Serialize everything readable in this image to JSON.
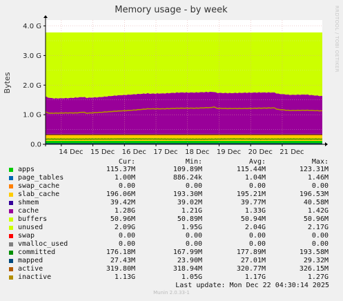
{
  "chart_data": {
    "type": "area",
    "stacked": true,
    "title": "Memory usage - by week",
    "ylabel": "Bytes",
    "side_label": "RRDTOOL / TOBI OETIKER",
    "ylim": [
      0,
      4.2
    ],
    "y_unit": "G",
    "y_ticks": [
      {
        "value": 0,
        "label": "0.0"
      },
      {
        "value": 1,
        "label": "1.0 G"
      },
      {
        "value": 2,
        "label": "2.0 G"
      },
      {
        "value": 3,
        "label": "3.0 G"
      },
      {
        "value": 4,
        "label": "4.0 G"
      }
    ],
    "x_ticks": [
      "14 Dec",
      "15 Dec",
      "16 Dec",
      "17 Dec",
      "18 Dec",
      "19 Dec",
      "20 Dec",
      "21 Dec"
    ],
    "xlim": [
      13.5,
      22.27
    ],
    "data_start": 13.5,
    "grid": true,
    "columns": [
      "Cur:",
      "Min:",
      "Avg:",
      "Max:"
    ],
    "series": [
      {
        "name": "apps",
        "color": "#00cc00",
        "cur": "115.37M",
        "min": "109.89M",
        "avg": "115.44M",
        "max": "123.31M"
      },
      {
        "name": "page_tables",
        "color": "#0066b3",
        "cur": "1.00M",
        "min": "886.24k",
        "avg": "1.04M",
        "max": "1.46M"
      },
      {
        "name": "swap_cache",
        "color": "#ff8000",
        "cur": "0.00",
        "min": "0.00",
        "avg": "0.00",
        "max": "0.00"
      },
      {
        "name": "slab_cache",
        "color": "#ffcc00",
        "cur": "196.06M",
        "min": "193.30M",
        "avg": "195.21M",
        "max": "196.53M"
      },
      {
        "name": "shmem",
        "color": "#330099",
        "cur": "39.42M",
        "min": "39.02M",
        "avg": "39.77M",
        "max": "40.58M"
      },
      {
        "name": "cache",
        "color": "#990099",
        "cur": "1.28G",
        "min": "1.21G",
        "avg": "1.33G",
        "max": "1.42G"
      },
      {
        "name": "buffers",
        "color": "#ccff00",
        "cur": "50.96M",
        "min": "50.89M",
        "avg": "50.94M",
        "max": "50.96M"
      },
      {
        "name": "unused",
        "color": "#ccff00",
        "cur": "2.09G",
        "min": "1.95G",
        "avg": "2.04G",
        "max": "2.17G"
      },
      {
        "name": "swap",
        "color": "#ff0000",
        "cur": "0.00",
        "min": "0.00",
        "avg": "0.00",
        "max": "0.00"
      },
      {
        "name": "vmalloc_used",
        "color": "#808080",
        "cur": "0.00",
        "min": "0.00",
        "avg": "0.00",
        "max": "0.00"
      },
      {
        "name": "committed",
        "color": "#008f00",
        "cur": "176.18M",
        "min": "167.99M",
        "avg": "177.89M",
        "max": "193.58M"
      },
      {
        "name": "mapped",
        "color": "#00487d",
        "cur": "27.43M",
        "min": "23.90M",
        "avg": "27.01M",
        "max": "29.32M"
      },
      {
        "name": "active",
        "color": "#b35a00",
        "cur": "319.80M",
        "min": "318.94M",
        "avg": "320.77M",
        "max": "326.15M"
      },
      {
        "name": "inactive",
        "color": "#b38f00",
        "cur": "1.13G",
        "min": "1.05G",
        "avg": "1.17G",
        "max": "1.27G"
      }
    ],
    "profiles": {
      "cache_g": [
        [
          13.5,
          1.26
        ],
        [
          13.62,
          1.22
        ],
        [
          13.78,
          1.2
        ],
        [
          14.2,
          1.21
        ],
        [
          14.5,
          1.23
        ],
        [
          14.72,
          1.25
        ],
        [
          14.78,
          1.22
        ],
        [
          15.2,
          1.24
        ],
        [
          15.75,
          1.3
        ],
        [
          16.2,
          1.33
        ],
        [
          16.75,
          1.37
        ],
        [
          16.82,
          1.36
        ],
        [
          17.25,
          1.37
        ],
        [
          17.75,
          1.4
        ],
        [
          18.25,
          1.4
        ],
        [
          18.75,
          1.42
        ],
        [
          18.85,
          1.42
        ],
        [
          18.9,
          1.39
        ],
        [
          19.3,
          1.38
        ],
        [
          19.75,
          1.39
        ],
        [
          20.25,
          1.4
        ],
        [
          20.75,
          1.4
        ],
        [
          20.85,
          1.36
        ],
        [
          21.25,
          1.32
        ],
        [
          21.75,
          1.33
        ],
        [
          22.25,
          1.28
        ]
      ],
      "inactive_g": [
        [
          13.5,
          1.09
        ],
        [
          13.62,
          1.05
        ],
        [
          14.2,
          1.06
        ],
        [
          14.5,
          1.06
        ],
        [
          14.72,
          1.09
        ],
        [
          14.78,
          1.05
        ],
        [
          15.25,
          1.08
        ],
        [
          15.75,
          1.12
        ],
        [
          16.25,
          1.15
        ],
        [
          16.75,
          1.2
        ],
        [
          17.25,
          1.2
        ],
        [
          17.75,
          1.22
        ],
        [
          18.25,
          1.22
        ],
        [
          18.75,
          1.24
        ],
        [
          18.85,
          1.27
        ],
        [
          18.9,
          1.22
        ],
        [
          19.25,
          1.21
        ],
        [
          19.75,
          1.21
        ],
        [
          20.25,
          1.22
        ],
        [
          20.75,
          1.23
        ],
        [
          20.85,
          1.18
        ],
        [
          21.25,
          1.14
        ],
        [
          21.75,
          1.15
        ],
        [
          22.25,
          1.13
        ]
      ],
      "committed_g": [
        [
          13.5,
          0.177
        ],
        [
          14.5,
          0.176
        ],
        [
          15.5,
          0.178
        ],
        [
          16.5,
          0.18
        ],
        [
          17.5,
          0.176
        ],
        [
          18.5,
          0.174
        ],
        [
          19.5,
          0.18
        ],
        [
          20.5,
          0.176
        ],
        [
          21.5,
          0.178
        ],
        [
          22.25,
          0.176
        ]
      ]
    }
  },
  "legend": {
    "last_update_label": "Last update:",
    "last_update": "Mon Dec 22 04:30:14 2025"
  },
  "footer": {
    "munin_version": "Munin 2.0.33-1"
  }
}
